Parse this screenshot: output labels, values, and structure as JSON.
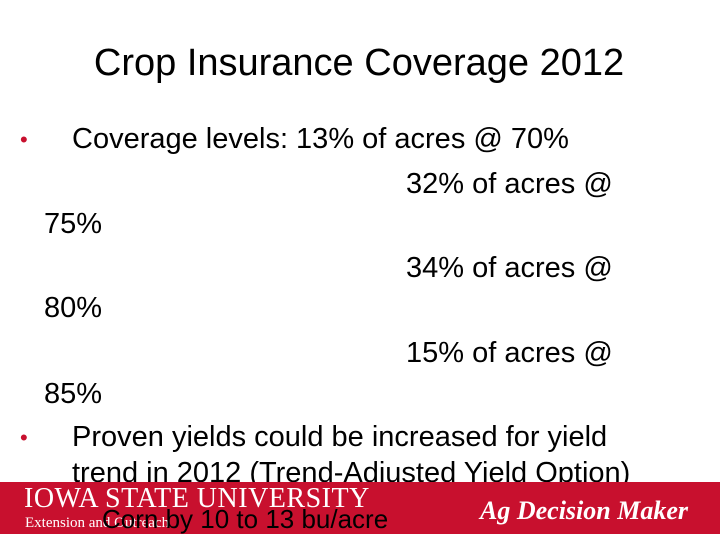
{
  "slide": {
    "title": "Crop Insurance Coverage 2012",
    "bullets": {
      "b1": {
        "marker": "•",
        "line1": "Coverage levels:  13% of acres @ 70%",
        "line2": "32% of acres @",
        "line3": "75%",
        "line4": "34% of acres @",
        "line5": "80%",
        "line6": "15% of acres @",
        "line7": "85%"
      },
      "b2": {
        "marker": "•",
        "line1": "Proven yields could be increased for yield",
        "line2": "trend in 2012 (Trend-Adjusted Yield Option)"
      },
      "sub": {
        "line1": "Corn by 10 to 13 bu/acre"
      }
    }
  },
  "footer": {
    "university": "IOWA STATE UNIVERSITY",
    "extension": "Extension and Outreach",
    "program": "Ag Decision Maker"
  },
  "colors": {
    "brand_red": "#c8102e",
    "text": "#000000",
    "background": "#ffffff"
  }
}
